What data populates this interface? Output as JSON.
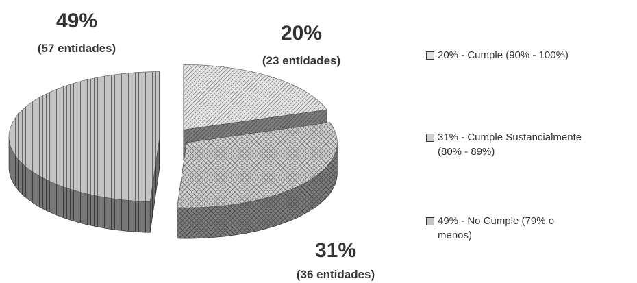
{
  "chart_data": {
    "type": "pie",
    "categories": [
      "20% - Cumple (90% - 100%)",
      "31% - Cumple Sustancialmente (80% - 89%)",
      "49% - No Cumple (79% o menos)"
    ],
    "values": [
      20,
      31,
      49
    ],
    "value_labels": [
      "20%",
      "31%",
      "49%"
    ],
    "count_labels": [
      "(23 entidades)",
      "(36 entidades)",
      "(57 entidades)"
    ],
    "colors": [
      "#e2e2e2",
      "#d0d0d0",
      "#c4c4c4"
    ]
  }
}
